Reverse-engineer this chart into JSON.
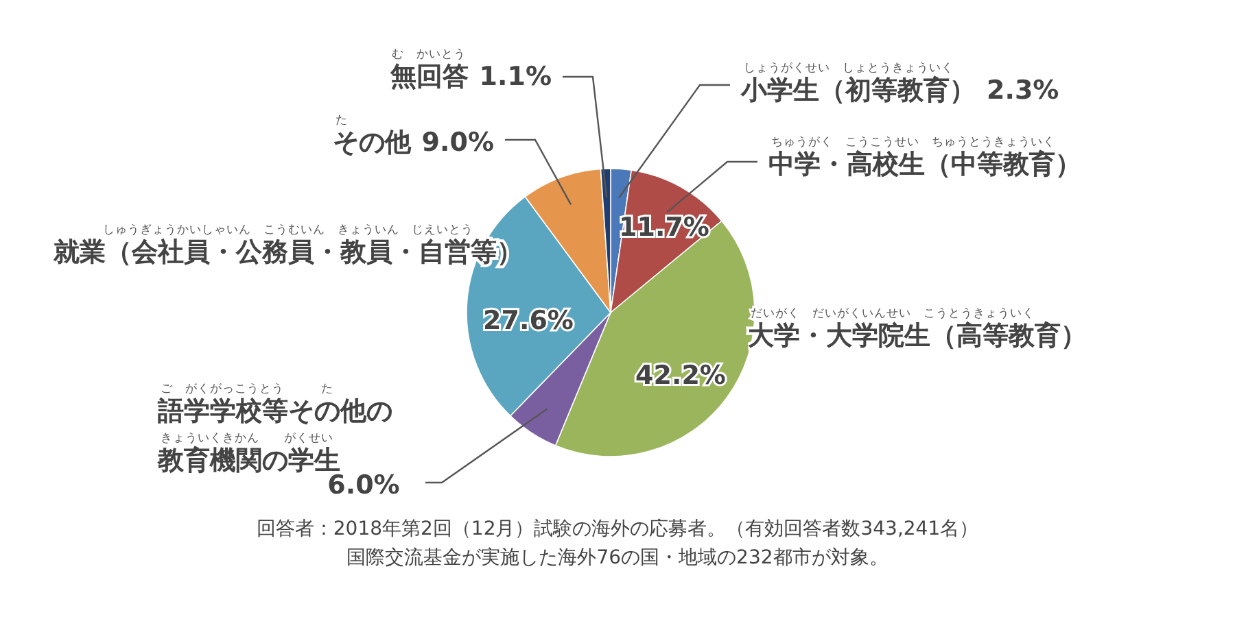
{
  "chart_data": {
    "type": "pie",
    "categories": [
      "小学生（初等教育）",
      "中学・高校生（中等教育）",
      "大学・大学院生（高等教育）",
      "語学学校等その他の教育機関の学生",
      "就業（会社員・公務員・教員・自営等）",
      "その他",
      "無回答"
    ],
    "values": [
      2.3,
      11.7,
      42.2,
      6.0,
      27.6,
      9.0,
      1.1
    ],
    "colors": [
      "#4a78b8",
      "#b04c48",
      "#9ab55c",
      "#7a5fa0",
      "#5aa5c0",
      "#e6964c",
      "#1f3d6e"
    ],
    "value_labels": [
      "2.3%",
      "11.7%",
      "42.2%",
      "6.0%",
      "27.6%",
      "9.0%",
      "1.1%"
    ],
    "annotations": [
      "しょうがくせい　しょとうきょういく",
      "ちゅうがく　こうこうせい　ちゅうとうきょういく",
      "だいがく　だいがくいんせい　こうとうきょういく",
      "ご　がくがっこうとう　　　た",
      "きょういくきかん　　がくせい",
      "しゅうぎょうかいしゃいん　こうむいん　きょういん　じえいとう",
      "た",
      "む　かいとう",
      "回答者：2018年第2回（12月）試験の海外の応募者。（有効回答者数343,241名）",
      "国際交流基金が実施した海外76の国・地域の232都市が対象。"
    ]
  }
}
